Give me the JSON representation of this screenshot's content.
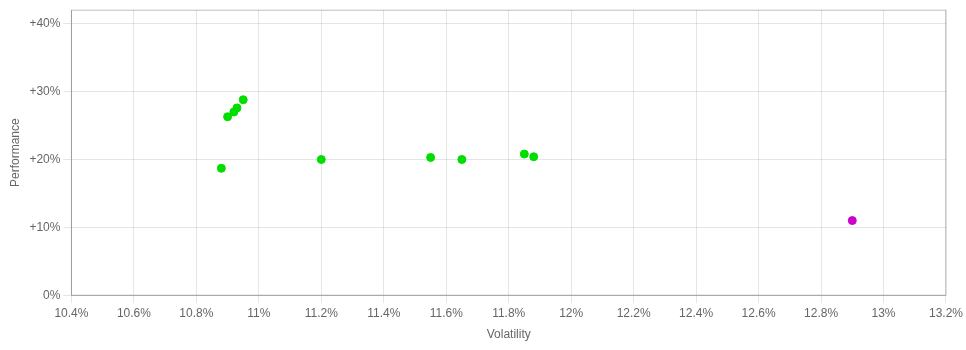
{
  "chart_data": {
    "type": "scatter",
    "xlabel": "Volatility",
    "ylabel": "Performance",
    "series": [
      {
        "color": "#00dd00",
        "x": [
          0.1095,
          0.1093,
          0.1092,
          0.109,
          0.1088,
          0.112,
          0.1155,
          0.1165,
          0.1185,
          0.1188
        ],
        "values": [
          0.288,
          0.276,
          0.27,
          0.263,
          0.187,
          0.2,
          0.203,
          0.2,
          0.208,
          0.204
        ]
      },
      {
        "color": "#cc00cc",
        "x": [
          0.129
        ],
        "values": [
          0.11
        ]
      }
    ],
    "xlim": [
      0.104,
      0.132
    ],
    "xticks": [
      {
        "value": 0.104,
        "label": "10.4%"
      },
      {
        "value": 0.106,
        "label": "10.6%"
      },
      {
        "value": 0.108,
        "label": "10.8%"
      },
      {
        "value": 0.11,
        "label": "11%"
      },
      {
        "value": 0.112,
        "label": "11.2%"
      },
      {
        "value": 0.114,
        "label": "11.4%"
      },
      {
        "value": 0.116,
        "label": "11.6%"
      },
      {
        "value": 0.118,
        "label": "11.8%"
      },
      {
        "value": 0.12,
        "label": "12%"
      },
      {
        "value": 0.122,
        "label": "12.2%"
      },
      {
        "value": 0.124,
        "label": "12.4%"
      },
      {
        "value": 0.126,
        "label": "12.6%"
      },
      {
        "value": 0.128,
        "label": "12.8%"
      },
      {
        "value": 0.13,
        "label": "13%"
      },
      {
        "value": 0.132,
        "label": "13.2%"
      }
    ],
    "ylim": [
      0.0,
      0.42
    ],
    "yticks": [
      {
        "value": 0.0,
        "label": "0%"
      },
      {
        "value": 0.1,
        "label": "+10%"
      },
      {
        "value": 0.2,
        "label": "+20%"
      },
      {
        "value": 0.3,
        "label": "+30%"
      },
      {
        "value": 0.4,
        "label": "+40%"
      }
    ],
    "grid": true
  }
}
